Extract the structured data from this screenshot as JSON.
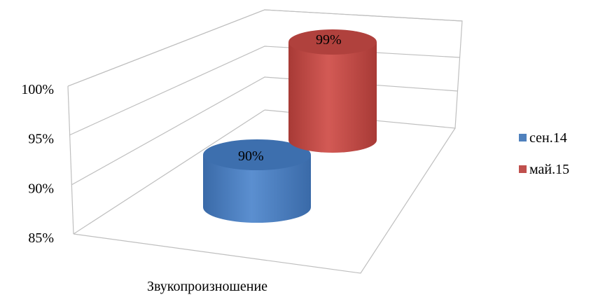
{
  "chart_data": {
    "type": "bar",
    "style": "3d-cylinder",
    "categories": [
      "Звукопроизношение"
    ],
    "series": [
      {
        "name": "сен.14",
        "values": [
          90
        ],
        "labels": [
          "90%"
        ],
        "color": "#4f81bd"
      },
      {
        "name": "май.15",
        "values": [
          99
        ],
        "labels": [
          "99%"
        ],
        "color": "#c0504d"
      }
    ],
    "yticks": [
      "85%",
      "90%",
      "95%",
      "100%"
    ],
    "ylim": [
      85,
      100
    ],
    "grid": true,
    "legend_position": "right"
  }
}
